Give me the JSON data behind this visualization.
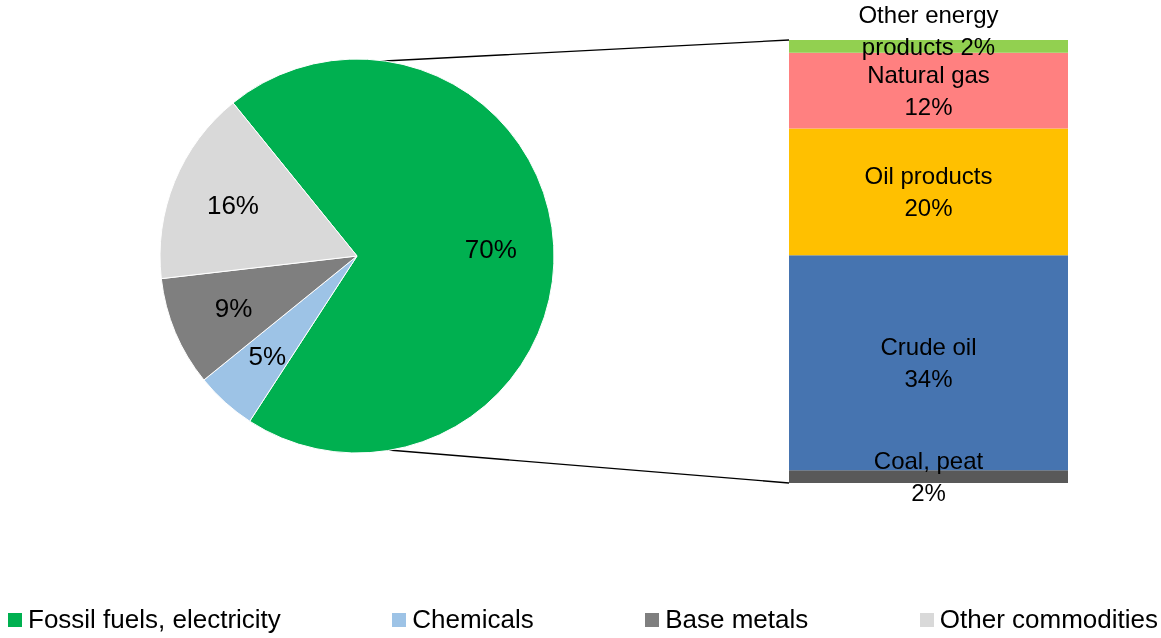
{
  "chart_data": [
    {
      "type": "pie",
      "categories": [
        "Fossil fuels, electricity",
        "Chemicals",
        "Base metals",
        "Other commodities"
      ],
      "values": [
        70,
        5,
        9,
        16
      ],
      "colors": [
        "#00b050",
        "#9dc3e6",
        "#7f7f7f",
        "#d9d9d9"
      ],
      "value_labels": [
        "70%",
        "5%",
        "9%",
        "16%"
      ],
      "legend": "bottom"
    },
    {
      "type": "bar",
      "stacked": true,
      "categories": [
        null
      ],
      "series": [
        {
          "name": "Coal, peat",
          "color": "#595959",
          "values": [
            2
          ],
          "value_labels": [
            "2%"
          ]
        },
        {
          "name": "Crude oil",
          "color": "#4674b0",
          "values": [
            34
          ],
          "value_labels": [
            "34%"
          ]
        },
        {
          "name": "Oil products",
          "color": "#ffc000",
          "values": [
            20
          ],
          "value_labels": [
            "20%"
          ]
        },
        {
          "name": "Natural gas",
          "color": "#ff8080",
          "values": [
            12
          ],
          "value_labels": [
            "12%"
          ]
        },
        {
          "name": "Other energy products",
          "color": "#92d050",
          "values": [
            2
          ],
          "value_labels": [
            "2%"
          ]
        }
      ]
    }
  ]
}
